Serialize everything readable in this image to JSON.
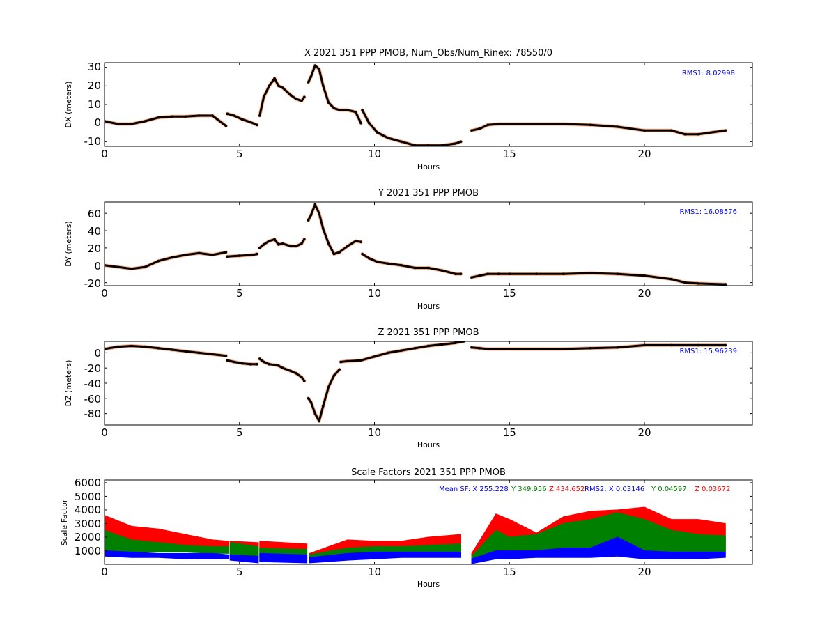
{
  "colors": {
    "trace": "#000000",
    "outlier": "#ff6a1a",
    "rms": "#0000ff",
    "sf_x": "#0000ff",
    "sf_y": "#008000",
    "sf_z": "#ff0000"
  },
  "chart_data": [
    {
      "type": "scatter",
      "title": "X 2021 351 PPP  PMOB, Num_Obs/Num_Rinex: 78550/0",
      "xlabel": "Hours",
      "ylabel": "DX (meters)",
      "xlim": [
        0,
        24
      ],
      "ylim": [
        -12.5,
        32.5
      ],
      "xticks": [
        "0",
        "5",
        "10",
        "15",
        "20"
      ],
      "yticks": [
        "-10",
        "0",
        "10",
        "20",
        "30"
      ],
      "annotation": "RMS1:  8.02998",
      "series": [
        {
          "x": [
            0,
            0.5,
            1.0,
            1.5,
            2.0,
            2.5,
            3.0,
            3.5,
            4.0,
            4.5
          ],
          "y": [
            1,
            -0.5,
            -0.5,
            1,
            3,
            3.5,
            3.5,
            4,
            4,
            -1.5
          ]
        },
        {
          "x": [
            4.55,
            4.8,
            5.1,
            5.4,
            5.65
          ],
          "y": [
            5,
            4,
            2,
            0.5,
            -1
          ]
        },
        {
          "x": [
            5.75,
            5.9,
            6.1,
            6.3,
            6.45,
            6.6,
            6.9,
            7.1,
            7.3,
            7.4
          ],
          "y": [
            4,
            14,
            20,
            24,
            20,
            19,
            15,
            13,
            12,
            14
          ]
        },
        {
          "x": [
            7.55,
            7.65,
            7.8,
            7.95,
            8.1,
            8.3,
            8.5,
            8.7,
            9.0,
            9.3,
            9.5
          ],
          "y": [
            22,
            25,
            31,
            29,
            20,
            11,
            8,
            7,
            7,
            6,
            0
          ]
        },
        {
          "x": [
            9.55,
            9.8,
            10.1,
            10.5,
            11.0,
            11.5,
            12.0,
            12.5,
            13.0,
            13.2
          ],
          "y": [
            7,
            0,
            -5,
            -8,
            -10,
            -12,
            -12,
            -12,
            -11,
            -10
          ]
        },
        {
          "x": [
            13.6,
            13.9,
            14.2,
            14.6,
            15.0,
            16.0,
            17.0,
            18.0,
            19.0,
            20.0,
            21.0,
            21.5,
            22.0,
            23.0
          ],
          "y": [
            -4,
            -3,
            -1,
            -0.5,
            -0.5,
            -0.5,
            -0.5,
            -1,
            -2,
            -4,
            -4,
            -6,
            -6,
            -4
          ]
        }
      ]
    },
    {
      "type": "scatter",
      "title": "Y 2021 351 PPP  PMOB",
      "xlabel": "Hours",
      "ylabel": "DY (meters)",
      "xlim": [
        0,
        24
      ],
      "ylim": [
        -23.5,
        73
      ],
      "xticks": [
        "0",
        "5",
        "10",
        "15",
        "20"
      ],
      "yticks": [
        "-20",
        "0",
        "20",
        "40",
        "60"
      ],
      "annotation": "RMS1: 16.08576",
      "series": [
        {
          "x": [
            0,
            0.5,
            1.0,
            1.5,
            2.0,
            2.5,
            3.0,
            3.5,
            4.0,
            4.5
          ],
          "y": [
            0,
            -2,
            -4,
            -2,
            5,
            9,
            12,
            14,
            12,
            15
          ]
        },
        {
          "x": [
            4.55,
            5.0,
            5.5,
            5.65
          ],
          "y": [
            10,
            11,
            12,
            13
          ]
        },
        {
          "x": [
            5.75,
            5.9,
            6.1,
            6.3,
            6.45,
            6.6,
            6.9,
            7.1,
            7.3,
            7.4
          ],
          "y": [
            20,
            24,
            28,
            30,
            24,
            25,
            22,
            22,
            25,
            30
          ]
        },
        {
          "x": [
            7.55,
            7.65,
            7.8,
            7.95,
            8.1,
            8.3,
            8.5,
            8.7,
            9.0,
            9.3,
            9.5
          ],
          "y": [
            52,
            58,
            70,
            60,
            42,
            25,
            13,
            15,
            22,
            28,
            27
          ]
        },
        {
          "x": [
            9.55,
            9.8,
            10.1,
            10.5,
            11.0,
            11.5,
            12.0,
            12.5,
            13.0,
            13.2
          ],
          "y": [
            13,
            8,
            4,
            2,
            0,
            -3,
            -3,
            -6,
            -10,
            -10
          ]
        },
        {
          "x": [
            13.6,
            13.9,
            14.2,
            14.6,
            15.0,
            16.0,
            17.0,
            18.0,
            19.0,
            20.0,
            21.0,
            21.5,
            22.0,
            23.0
          ],
          "y": [
            -14,
            -12,
            -10,
            -10,
            -10,
            -10,
            -10,
            -9,
            -10,
            -12,
            -16,
            -20,
            -21,
            -22
          ]
        }
      ]
    },
    {
      "type": "scatter",
      "title": "Z 2021 351 PPP  PMOB",
      "xlabel": "Hours",
      "ylabel": "DZ (meters)",
      "xlim": [
        0,
        24
      ],
      "ylim": [
        -95,
        15
      ],
      "xticks": [
        "0",
        "5",
        "10",
        "15",
        "20"
      ],
      "yticks": [
        "0",
        "-20",
        "-40",
        "-60",
        "-80"
      ],
      "annotation": "RMS1: 15.96239",
      "series": [
        {
          "x": [
            0,
            0.5,
            1.0,
            1.5,
            2.0,
            2.5,
            3.0,
            3.5,
            4.0,
            4.5
          ],
          "y": [
            5,
            8,
            9,
            8,
            6,
            4,
            2,
            0,
            -2,
            -4
          ]
        },
        {
          "x": [
            4.55,
            4.8,
            5.1,
            5.4,
            5.65
          ],
          "y": [
            -10,
            -12,
            -14,
            -15,
            -15
          ]
        },
        {
          "x": [
            5.75,
            5.9,
            6.1,
            6.3,
            6.45,
            6.6,
            6.9,
            7.1,
            7.3,
            7.4
          ],
          "y": [
            -8,
            -12,
            -15,
            -16,
            -17,
            -20,
            -24,
            -27,
            -32,
            -37
          ]
        },
        {
          "x": [
            7.55,
            7.65,
            7.8,
            7.95,
            8.1,
            8.3,
            8.5,
            8.7
          ],
          "y": [
            -60,
            -65,
            -80,
            -90,
            -70,
            -45,
            -30,
            -22
          ]
        },
        {
          "x": [
            8.75,
            9.0,
            9.5,
            10.0,
            10.5,
            11.0,
            11.5,
            12.0,
            12.5,
            13.0,
            13.3
          ],
          "y": [
            -12,
            -11,
            -10,
            -5,
            0,
            3,
            6,
            9,
            11,
            13,
            15
          ]
        },
        {
          "x": [
            13.6,
            13.9,
            14.2,
            14.6,
            15.0,
            16.0,
            17.0,
            18.0,
            19.0,
            20.0,
            21.0,
            22.0,
            23.0
          ],
          "y": [
            7,
            6,
            5,
            5,
            5,
            5,
            5,
            6,
            7,
            10,
            10,
            10,
            10
          ]
        }
      ]
    },
    {
      "type": "scatter",
      "title": "Scale Factors 2021 351 PPP  PMOB",
      "xlabel": "Hours",
      "ylabel": "Scale Factor",
      "xlim": [
        0,
        24
      ],
      "ylim": [
        0,
        6200
      ],
      "xticks": [
        "0",
        "5",
        "10",
        "15",
        "20"
      ],
      "yticks": [
        "1000",
        "2000",
        "3000",
        "4000",
        "5000",
        "6000"
      ],
      "annotations": [
        {
          "text": "Mean SF: X 255.228",
          "color": "#0000ff"
        },
        {
          "text": "Y 349.956",
          "color": "#008000"
        },
        {
          "text": "Z 434.652",
          "color": "#ff0000"
        },
        {
          "text": "RMS2: X   0.03146",
          "color": "#0000ff"
        },
        {
          "text": "Y   0.04597",
          "color": "#008000"
        },
        {
          "text": "Z   0.03672",
          "color": "#ff0000"
        }
      ],
      "bands": [
        {
          "name": "Z",
          "color": "#ff0000",
          "segments": [
            {
              "x": [
                0,
                1,
                2,
                3,
                4,
                4.6
              ],
              "low": [
                1400,
                1300,
                1200,
                1100,
                1000,
                900
              ],
              "high": [
                3600,
                2800,
                2600,
                2200,
                1800,
                1700
              ]
            },
            {
              "x": [
                4.65,
                5.7
              ],
              "low": [
                800,
                700
              ],
              "high": [
                1700,
                1600
              ]
            },
            {
              "x": [
                5.75,
                7.5
              ],
              "low": [
                900,
                800
              ],
              "high": [
                1700,
                1500
              ]
            },
            {
              "x": [
                7.6,
                9,
                10,
                11,
                12,
                13.2
              ],
              "low": [
                500,
                900,
                900,
                900,
                1000,
                1000
              ],
              "high": [
                800,
                1800,
                1700,
                1700,
                2000,
                2200
              ]
            },
            {
              "x": [
                13.6,
                14.5,
                15,
                16,
                17,
                18,
                19,
                20,
                21,
                22,
                23
              ],
              "low": [
                200,
                1000,
                800,
                1100,
                1500,
                1300,
                1400,
                1200,
                1000,
                1000,
                1000
              ],
              "high": [
                800,
                3700,
                3300,
                2300,
                3500,
                3900,
                4000,
                4200,
                3300,
                3300,
                3000
              ]
            }
          ]
        },
        {
          "name": "Y",
          "color": "#008000",
          "segments": [
            {
              "x": [
                0,
                1,
                2,
                3,
                4,
                4.6
              ],
              "low": [
                1000,
                900,
                900,
                900,
                800,
                800
              ],
              "high": [
                2500,
                1800,
                1600,
                1400,
                1300,
                1300
              ]
            },
            {
              "x": [
                4.65,
                5.7
              ],
              "low": [
                600,
                500
              ],
              "high": [
                1600,
                1300
              ]
            },
            {
              "x": [
                5.75,
                7.5
              ],
              "low": [
                500,
                400
              ],
              "high": [
                1200,
                1100
              ]
            },
            {
              "x": [
                7.6,
                9,
                10,
                11,
                12,
                13.2
              ],
              "low": [
                300,
                600,
                600,
                600,
                600,
                700
              ],
              "high": [
                700,
                1200,
                1300,
                1300,
                1400,
                1500
              ]
            },
            {
              "x": [
                13.6,
                14.5,
                15,
                16,
                17,
                18,
                19,
                20,
                21,
                22,
                23
              ],
              "low": [
                100,
                700,
                700,
                800,
                900,
                900,
                1000,
                900,
                900,
                900,
                900
              ],
              "high": [
                600,
                2500,
                2000,
                2200,
                3000,
                3300,
                3800,
                3300,
                2500,
                2200,
                2100
              ]
            }
          ]
        },
        {
          "name": "X",
          "color": "#0000ff",
          "segments": [
            {
              "x": [
                0,
                1,
                2,
                3,
                4,
                4.6
              ],
              "low": [
                600,
                500,
                500,
                400,
                400,
                400
              ],
              "high": [
                1000,
                900,
                800,
                800,
                800,
                700
              ]
            },
            {
              "x": [
                4.65,
                5.7
              ],
              "low": [
                300,
                100
              ],
              "high": [
                700,
                600
              ]
            },
            {
              "x": [
                5.75,
                7.5
              ],
              "low": [
                200,
                100
              ],
              "high": [
                800,
                700
              ]
            },
            {
              "x": [
                7.6,
                9,
                10,
                11,
                12,
                13.2
              ],
              "low": [
                100,
                300,
                400,
                500,
                500,
                500
              ],
              "high": [
                500,
                800,
                900,
                900,
                900,
                900
              ]
            },
            {
              "x": [
                13.6,
                14.5,
                15,
                16,
                17,
                18,
                19,
                20,
                21,
                22,
                23
              ],
              "low": [
                50,
                400,
                400,
                500,
                500,
                500,
                600,
                400,
                400,
                400,
                500
              ],
              "high": [
                400,
                1000,
                1000,
                1000,
                1200,
                1200,
                2000,
                1000,
                900,
                900,
                900
              ]
            }
          ]
        }
      ]
    }
  ]
}
